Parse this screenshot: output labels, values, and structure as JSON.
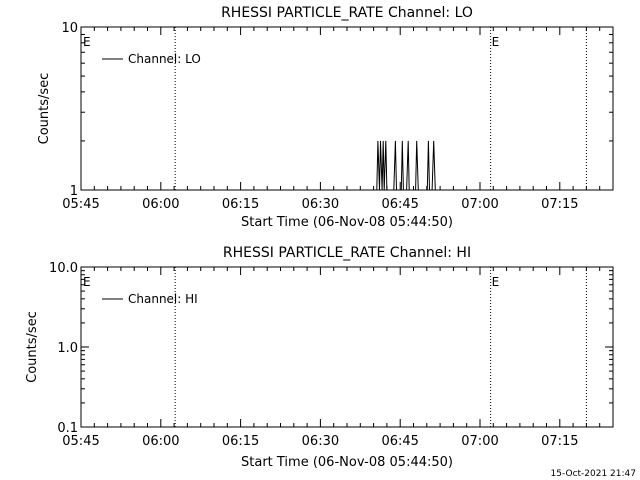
{
  "timestamp": "15-Oct-2021 21:47",
  "chart_data": [
    {
      "type": "line",
      "title": "RHESSI PARTICLE_RATE Channel: LO",
      "xlabel": "Start Time (06-Nov-08 05:44:50)",
      "ylabel": "Counts/sec",
      "y_scale": "log",
      "ylim": [
        1,
        10
      ],
      "y_ticks": [
        "1",
        "10"
      ],
      "x_range_minutes": [
        0,
        100
      ],
      "x_ticks": [
        "05:45",
        "06:00",
        "06:15",
        "06:30",
        "06:45",
        "07:00",
        "07:15"
      ],
      "x_tick_minutes": [
        0,
        15,
        30,
        45,
        60,
        75,
        90
      ],
      "legend": "top-left",
      "grid": false,
      "series": [
        {
          "name": "Channel: LO",
          "x_minutes": [
            55.4,
            55.6,
            55.8,
            56.1,
            56.3,
            56.6,
            56.8,
            57.0,
            57.3,
            57.5,
            57.8,
            58.1,
            58.3,
            58.6,
            58.8,
            59.1,
            59.3,
            59.6,
            59.8,
            60.2,
            60.4,
            60.6,
            60.9,
            61.2,
            61.5,
            61.7,
            62.0,
            62.3,
            62.6,
            62.9,
            63.1,
            63.4,
            63.7,
            64.0,
            64.2,
            64.5,
            64.8,
            65.1,
            65.3,
            65.5,
            65.8,
            66.0,
            66.3,
            66.6,
            66.9,
            67.2,
            67.5
          ],
          "y": [
            1,
            1,
            2,
            1,
            2,
            1,
            2,
            1,
            2,
            1,
            1,
            1,
            1,
            1,
            1,
            2,
            1,
            1,
            1,
            1,
            2,
            1,
            1,
            1,
            2,
            1,
            1,
            1,
            1,
            1,
            2,
            1,
            1,
            1,
            1,
            1,
            1,
            1,
            2,
            1,
            1,
            1,
            2,
            1,
            1,
            1,
            1
          ]
        }
      ],
      "markers": [
        {
          "label": "E",
          "x_minutes": -1.0
        },
        {
          "label": "E",
          "x_minutes": 77.0
        }
      ],
      "vertical_lines_minutes": [
        17.7,
        77.0,
        95.0
      ]
    },
    {
      "type": "line",
      "title": "RHESSI PARTICLE_RATE Channel: HI",
      "xlabel": "Start Time (06-Nov-08 05:44:50)",
      "ylabel": "Counts/sec",
      "y_scale": "log",
      "ylim": [
        0.1,
        10
      ],
      "y_ticks": [
        "0.1",
        "1.0",
        "10.0"
      ],
      "x_range_minutes": [
        0,
        100
      ],
      "x_ticks": [
        "05:45",
        "06:00",
        "06:15",
        "06:30",
        "06:45",
        "07:00",
        "07:15"
      ],
      "x_tick_minutes": [
        0,
        15,
        30,
        45,
        60,
        75,
        90
      ],
      "legend": "top-left",
      "grid": false,
      "series": [
        {
          "name": "Channel: HI",
          "x_minutes": [],
          "y": []
        }
      ],
      "markers": [
        {
          "label": "E",
          "x_minutes": -1.0
        },
        {
          "label": "E",
          "x_minutes": 77.0
        }
      ],
      "vertical_lines_minutes": [
        17.7,
        77.0,
        95.0
      ]
    }
  ]
}
